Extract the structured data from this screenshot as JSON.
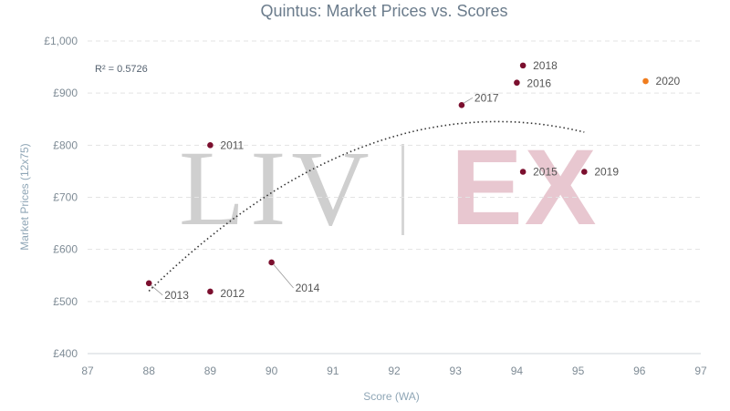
{
  "chart_data": {
    "type": "scatter",
    "title": "Quintus: Market Prices vs. Scores",
    "xlabel": "Score (WA)",
    "ylabel": "Market Prices (12x75)",
    "xlim": [
      87,
      97
    ],
    "ylim": [
      400,
      1000
    ],
    "x_ticks": [
      "87",
      "88",
      "89",
      "90",
      "91",
      "92",
      "93",
      "94",
      "95",
      "96",
      "97"
    ],
    "y_ticks": [
      "£400",
      "£500",
      "£600",
      "£700",
      "£800",
      "£900",
      "£1,000"
    ],
    "grid": true,
    "points": [
      {
        "label": "2011",
        "x": 89.0,
        "y": 800,
        "color": "#7b0f2e"
      },
      {
        "label": "2012",
        "x": 89.0,
        "y": 519,
        "color": "#7b0f2e"
      },
      {
        "label": "2013",
        "x": 88.0,
        "y": 535,
        "color": "#7b0f2e"
      },
      {
        "label": "2014",
        "x": 90.0,
        "y": 575,
        "color": "#7b0f2e"
      },
      {
        "label": "2015",
        "x": 94.1,
        "y": 749,
        "color": "#7b0f2e"
      },
      {
        "label": "2016",
        "x": 94.0,
        "y": 920,
        "color": "#7b0f2e"
      },
      {
        "label": "2017",
        "x": 93.1,
        "y": 877,
        "color": "#7b0f2e"
      },
      {
        "label": "2018",
        "x": 94.1,
        "y": 953,
        "color": "#7b0f2e"
      },
      {
        "label": "2019",
        "x": 95.1,
        "y": 749,
        "color": "#7b0f2e"
      },
      {
        "label": "2020",
        "x": 96.1,
        "y": 923,
        "color": "#f07d1e"
      }
    ],
    "trendline": {
      "type": "polynomial",
      "r_squared_label": "R² = 0.5726",
      "x_range": [
        88.0,
        95.1
      ],
      "anchor_points": [
        [
          88.0,
          520
        ],
        [
          93.5,
          845
        ],
        [
          95.1,
          825
        ]
      ]
    },
    "watermark": {
      "left": "LIV",
      "right": "EX",
      "left_color": "#cfcfcf",
      "right_color": "#e8c7d0"
    }
  }
}
